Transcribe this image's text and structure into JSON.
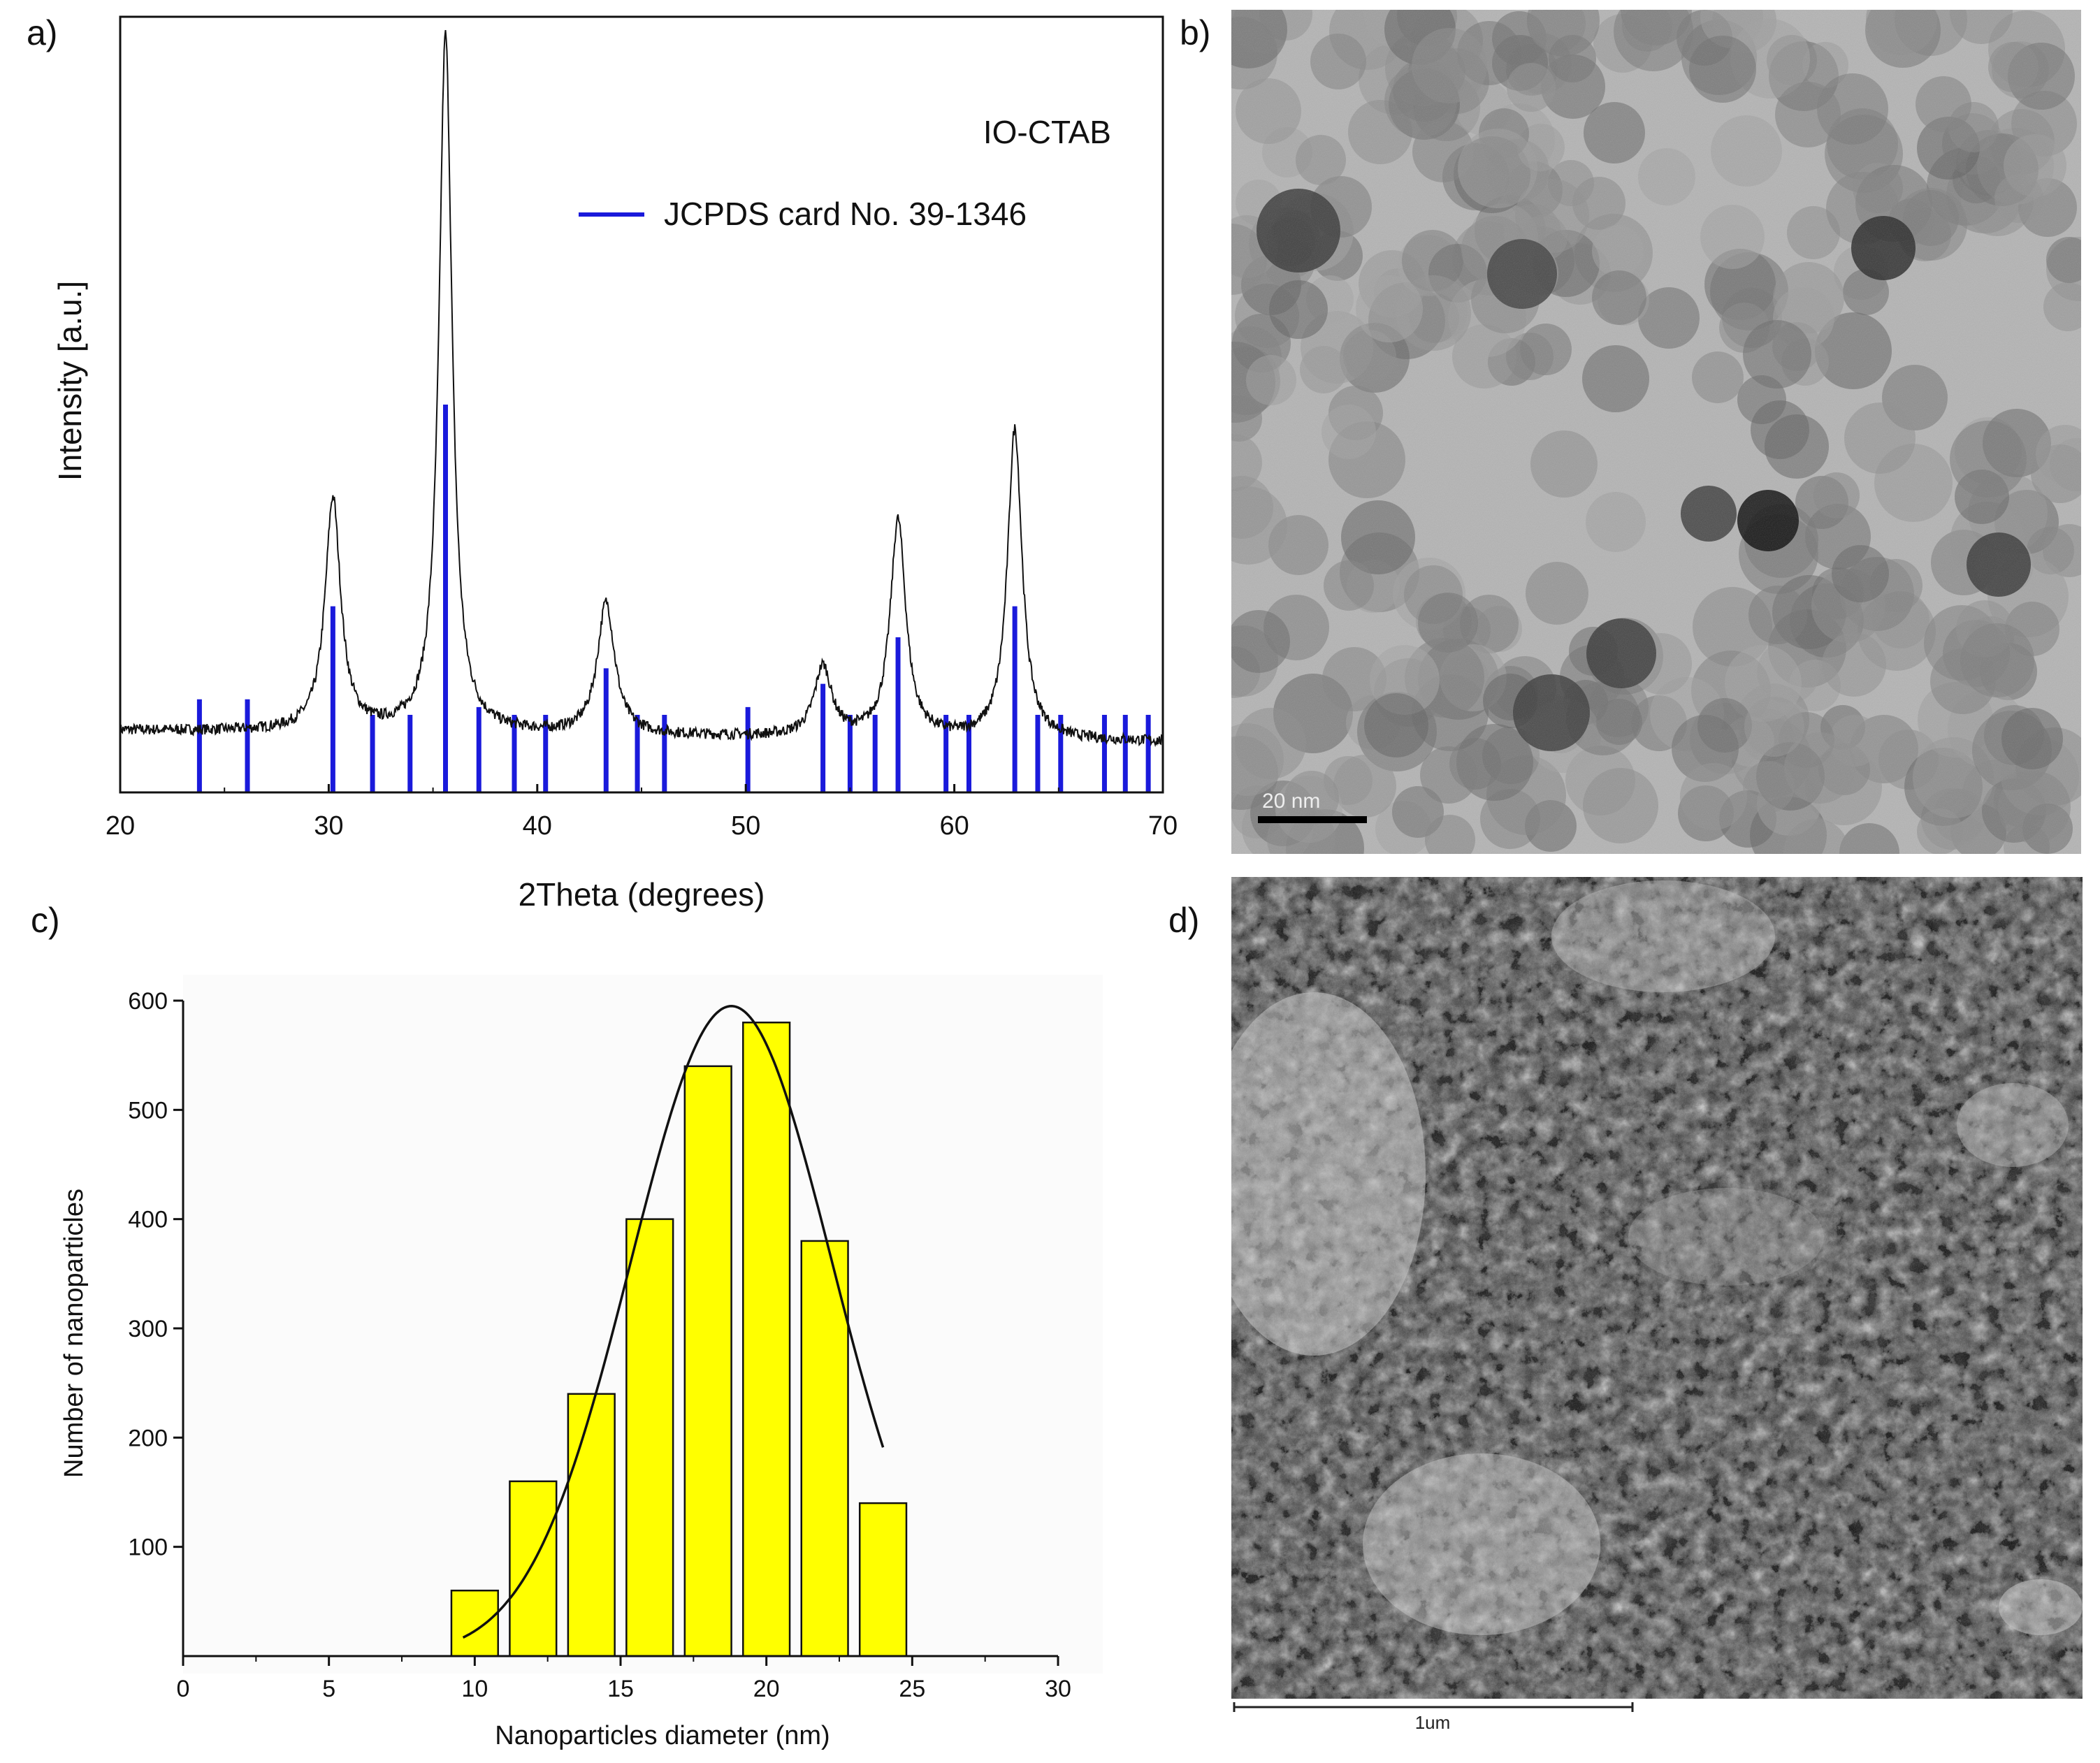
{
  "panels": {
    "a": {
      "letter": "a)",
      "chart_data": {
        "type": "line",
        "title": "",
        "xlabel": "2Theta (degrees)",
        "ylabel": "Intensity [a.u.]",
        "xlim": [
          20,
          70
        ],
        "ylim": [
          0,
          100
        ],
        "xticks": [
          "20",
          "30",
          "40",
          "50",
          "60",
          "70"
        ],
        "series_name": "IO-CTAB",
        "baseline": 8,
        "peaks": [
          {
            "x": 30.2,
            "height": 30,
            "width": 0.45
          },
          {
            "x": 35.6,
            "height": 90,
            "width": 0.38
          },
          {
            "x": 43.3,
            "height": 17,
            "width": 0.5
          },
          {
            "x": 53.7,
            "height": 9,
            "width": 0.5
          },
          {
            "x": 57.3,
            "height": 28,
            "width": 0.45
          },
          {
            "x": 62.9,
            "height": 40,
            "width": 0.42
          }
        ],
        "reference": {
          "label": "JCPDS card No. 39-1346",
          "color": "#1a1adb",
          "lines": [
            {
              "x": 23.8,
              "h": 12
            },
            {
              "x": 26.1,
              "h": 12
            },
            {
              "x": 30.2,
              "h": 24
            },
            {
              "x": 32.1,
              "h": 10
            },
            {
              "x": 33.9,
              "h": 10
            },
            {
              "x": 35.6,
              "h": 50
            },
            {
              "x": 37.2,
              "h": 11
            },
            {
              "x": 38.9,
              "h": 10
            },
            {
              "x": 40.4,
              "h": 10
            },
            {
              "x": 43.3,
              "h": 16
            },
            {
              "x": 44.8,
              "h": 10
            },
            {
              "x": 46.1,
              "h": 10
            },
            {
              "x": 50.1,
              "h": 11
            },
            {
              "x": 53.7,
              "h": 14
            },
            {
              "x": 55.0,
              "h": 10
            },
            {
              "x": 56.2,
              "h": 10
            },
            {
              "x": 57.3,
              "h": 20
            },
            {
              "x": 59.6,
              "h": 10
            },
            {
              "x": 60.7,
              "h": 10
            },
            {
              "x": 62.9,
              "h": 24
            },
            {
              "x": 64.0,
              "h": 10
            },
            {
              "x": 65.1,
              "h": 10
            },
            {
              "x": 67.2,
              "h": 10
            },
            {
              "x": 68.2,
              "h": 10
            },
            {
              "x": 69.3,
              "h": 10
            }
          ]
        },
        "legend_position": "top-right"
      }
    },
    "b": {
      "letter": "b)",
      "image": "TEM micrograph of nanoparticles",
      "scale_bar_label": "20 nm"
    },
    "c": {
      "letter": "c)",
      "chart_data": {
        "type": "bar",
        "title": "",
        "xlabel": "Nanoparticles diameter (nm)",
        "ylabel": "Number of nanoparticles",
        "xlim": [
          0,
          30
        ],
        "ylim": [
          0,
          600
        ],
        "xticks": [
          "0",
          "5",
          "10",
          "15",
          "20",
          "25",
          "30"
        ],
        "yticks": [
          "100",
          "200",
          "300",
          "400",
          "500",
          "600"
        ],
        "bin_centers": [
          10,
          12,
          14,
          16,
          18,
          20,
          22,
          24
        ],
        "bin_width": 1.6,
        "values": [
          60,
          160,
          240,
          400,
          540,
          580,
          380,
          140
        ],
        "bar_color": "#ffff00",
        "fit": {
          "type": "gaussian",
          "amplitude": 595,
          "mean": 18.8,
          "sigma": 3.45,
          "x_range": [
            9.6,
            24.0
          ]
        }
      }
    },
    "d": {
      "letter": "d)",
      "image": "SEM micrograph of nanoparticle aggregates",
      "scale_bar_label": "1um"
    }
  }
}
